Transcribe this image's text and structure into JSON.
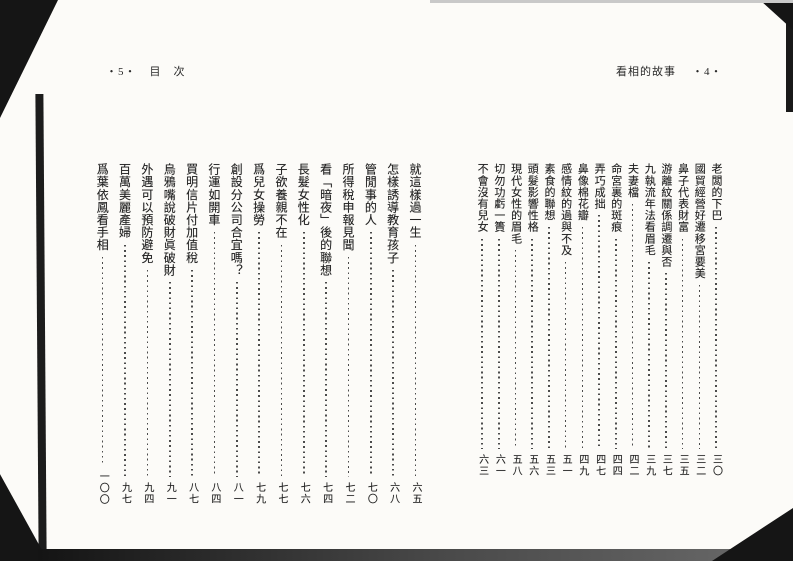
{
  "left_page": {
    "header": {
      "page_marker": "・5・",
      "title": "目　次"
    },
    "entries": [
      {
        "title": "就這樣過一生",
        "page": "六五"
      },
      {
        "title": "怎樣誘導教育孩子",
        "page": "六八"
      },
      {
        "title": "管閒事的人",
        "page": "七〇"
      },
      {
        "title": "所得稅申報見聞",
        "page": "七二"
      },
      {
        "title": "看「暗夜」後的聯想",
        "page": "七四"
      },
      {
        "title": "長髮女性化",
        "page": "七六"
      },
      {
        "title": "子欲養親不在",
        "page": "七七"
      },
      {
        "title": "爲兒女操勞",
        "page": "七九"
      },
      {
        "title": "創設分公司合宜嗎？",
        "page": "八一"
      },
      {
        "title": "行運如開車",
        "page": "八四"
      },
      {
        "title": "買明信片付加值稅",
        "page": "八七"
      },
      {
        "title": "烏鴉嘴說破財眞破財",
        "page": "九一"
      },
      {
        "title": "外遇可以預防避免",
        "page": "九四"
      },
      {
        "title": "百萬美麗產婦",
        "page": "九七"
      },
      {
        "title": "爲葉依鳳看手相",
        "page": "一〇〇"
      }
    ]
  },
  "right_page": {
    "header": {
      "title": "看相的故事",
      "page_marker": "・4・"
    },
    "entries": [
      {
        "title": "老闆的下巴",
        "page": "三〇"
      },
      {
        "title": "國貿經營好遷移宮要美",
        "page": "三二"
      },
      {
        "title": "鼻子代表財富",
        "page": "三五"
      },
      {
        "title": "游離紋關係調遷與否",
        "page": "三七"
      },
      {
        "title": "九執流年法看眉毛",
        "page": "三九"
      },
      {
        "title": "夫妻檔",
        "page": "四二"
      },
      {
        "title": "命宮裏的斑痕",
        "page": "四四"
      },
      {
        "title": "弄巧成拙",
        "page": "四七"
      },
      {
        "title": "鼻像棉花瓣",
        "page": "四九"
      },
      {
        "title": "感情紋的過與不及",
        "page": "五一"
      },
      {
        "title": "素食的聯想",
        "page": "五三"
      },
      {
        "title": "頭髮影響性格",
        "page": "五六"
      },
      {
        "title": "現代女性的眉毛",
        "page": "五八"
      },
      {
        "title": "切勿功虧一簣",
        "page": "六一"
      },
      {
        "title": "不會沒有兒女",
        "page": "六三"
      }
    ]
  },
  "colors": {
    "ink": "#232323",
    "paper": "#fcfbf8",
    "scan_edge": "#151515"
  }
}
